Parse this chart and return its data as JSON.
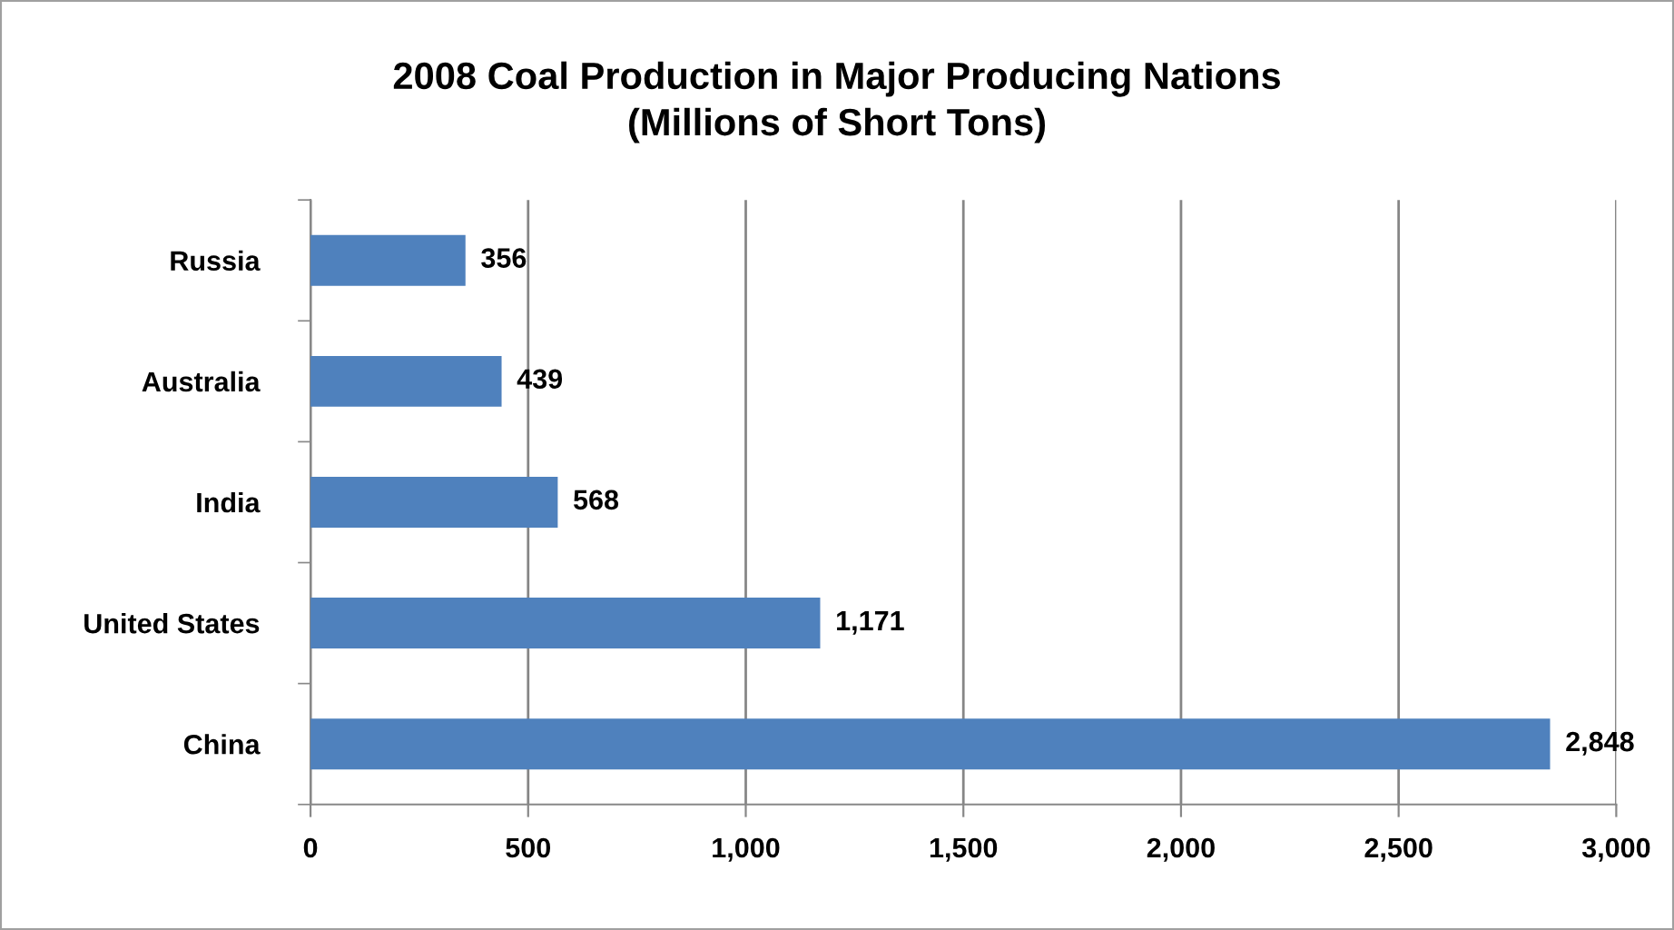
{
  "chart_data": {
    "type": "bar",
    "orientation": "horizontal",
    "title": "2008 Coal Production in Major Producing Nations\n(Millions of Short Tons)",
    "categories": [
      "Russia",
      "Australia",
      "India",
      "United States",
      "China"
    ],
    "values": [
      356,
      439,
      568,
      1171,
      2848
    ],
    "value_labels": [
      "356",
      "439",
      "568",
      "1,171",
      "2,848"
    ],
    "color": "#4f81bd",
    "xlim": [
      0,
      3000
    ],
    "xticks": [
      0,
      {
        "value": 500,
        "label": "500"
      },
      {
        "value": 1000,
        "label": "1,000"
      },
      {
        "value": 1500,
        "label": "1,500"
      },
      {
        "value": 2000,
        "label": "2,000"
      },
      {
        "value": 2500,
        "label": "2,500"
      },
      {
        "value": 3000,
        "label": "3,000"
      }
    ],
    "grid": "x",
    "legend": false
  }
}
